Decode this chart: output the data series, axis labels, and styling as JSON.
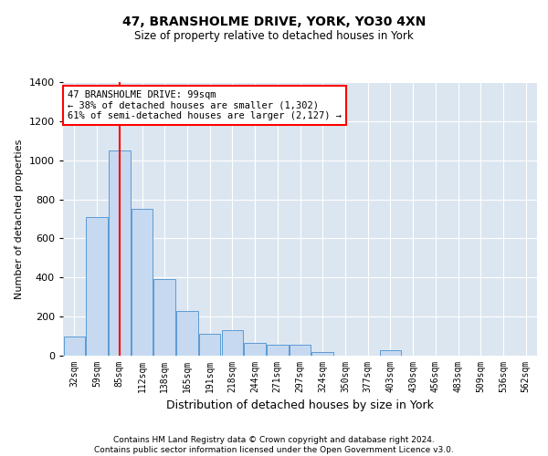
{
  "title1": "47, BRANSHOLME DRIVE, YORK, YO30 4XN",
  "title2": "Size of property relative to detached houses in York",
  "xlabel": "Distribution of detached houses by size in York",
  "ylabel": "Number of detached properties",
  "bar_color": "#c6d9f0",
  "bar_edge_color": "#5b9bd5",
  "background_color": "#dce6f1",
  "vline_color": "red",
  "vline_x": 2,
  "annotation_text": "47 BRANSHOLME DRIVE: 99sqm\n← 38% of detached houses are smaller (1,302)\n61% of semi-detached houses are larger (2,127) →",
  "annotation_box_color": "white",
  "annotation_box_edge": "red",
  "footer": "Contains HM Land Registry data © Crown copyright and database right 2024.\nContains public sector information licensed under the Open Government Licence v3.0.",
  "categories": [
    "32sqm",
    "59sqm",
    "85sqm",
    "112sqm",
    "138sqm",
    "165sqm",
    "191sqm",
    "218sqm",
    "244sqm",
    "271sqm",
    "297sqm",
    "324sqm",
    "350sqm",
    "377sqm",
    "403sqm",
    "430sqm",
    "456sqm",
    "483sqm",
    "509sqm",
    "536sqm",
    "562sqm"
  ],
  "values": [
    100,
    710,
    1050,
    750,
    390,
    230,
    110,
    130,
    65,
    55,
    55,
    20,
    0,
    0,
    30,
    0,
    0,
    0,
    0,
    0,
    0
  ],
  "ylim": [
    0,
    1400
  ],
  "yticks": [
    0,
    200,
    400,
    600,
    800,
    1000,
    1200,
    1400
  ]
}
